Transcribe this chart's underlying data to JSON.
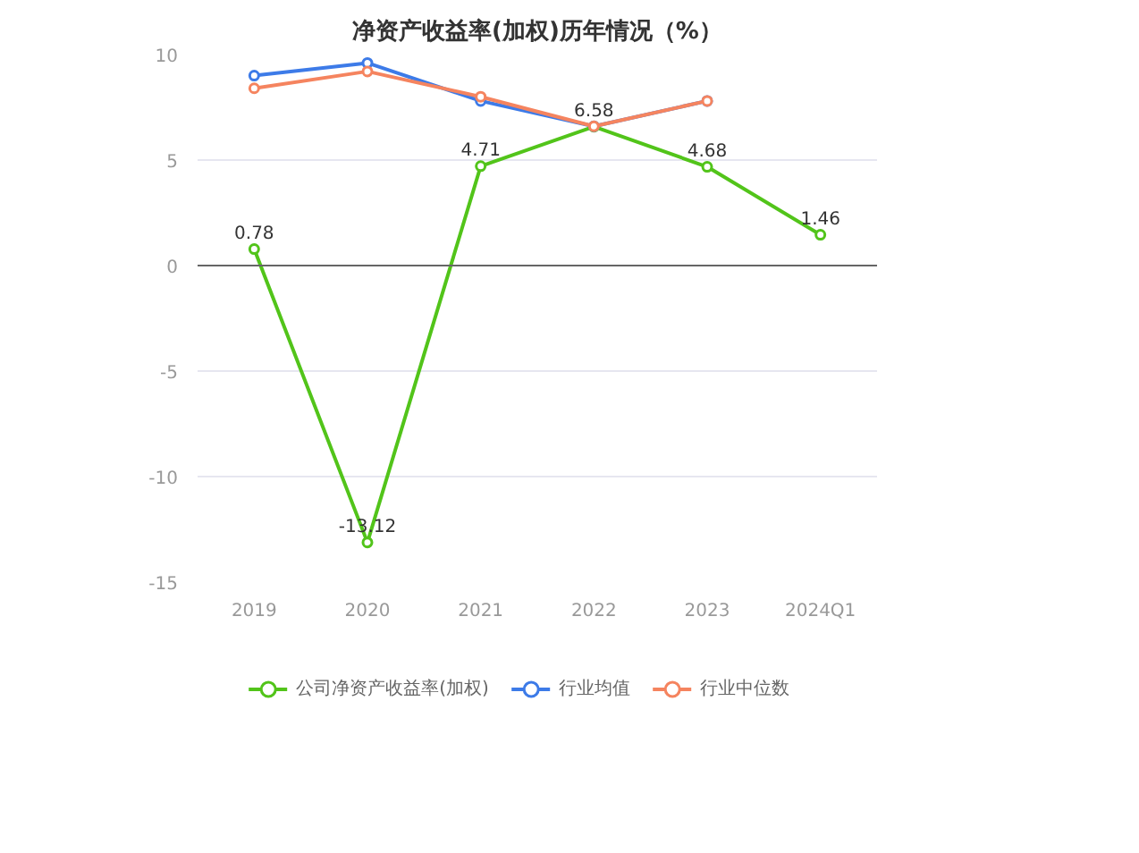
{
  "chart_data": {
    "type": "line",
    "title": "净资产收益率(加权)历年情况（%）",
    "categories": [
      "2019",
      "2020",
      "2021",
      "2022",
      "2023",
      "2024Q1"
    ],
    "series": [
      {
        "name": "公司净资产收益率(加权)",
        "color": "#52c41a",
        "values": [
          0.78,
          -13.12,
          4.71,
          6.58,
          4.68,
          1.46
        ],
        "value_labels": [
          "0.78",
          "-13.12",
          "4.71",
          "6.58",
          "4.68",
          "1.46"
        ]
      },
      {
        "name": "行业均值",
        "color": "#3d7be8",
        "values": [
          9.0,
          9.6,
          7.8,
          6.6,
          7.8,
          null
        ]
      },
      {
        "name": "行业中位数",
        "color": "#f5845f",
        "values": [
          8.4,
          9.2,
          8.0,
          6.6,
          7.8,
          null
        ]
      }
    ],
    "ylim": [
      -15,
      10
    ],
    "yticks": [
      -15,
      -10,
      -5,
      0,
      5,
      10
    ],
    "grid": "y",
    "legend": "bottom",
    "marker": "circle",
    "line_style": "solid"
  }
}
